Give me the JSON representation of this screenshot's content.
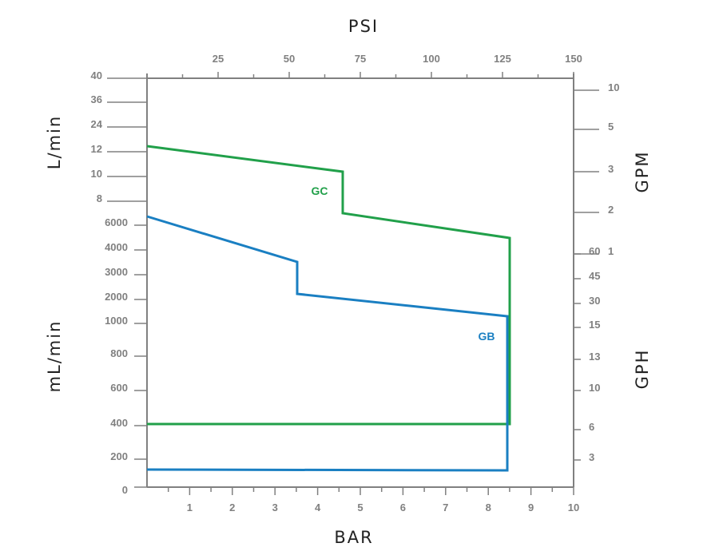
{
  "chart_data": {
    "type": "line",
    "title": "",
    "xlabel_top": "PSI",
    "xlabel_bottom": "BAR",
    "ylabel_left_upper": "L/min",
    "ylabel_left_lower": "mL/min",
    "ylabel_right_upper": "GPM",
    "ylabel_right_lower": "GPH",
    "x_bottom_ticks": [
      "1",
      "2",
      "3",
      "4",
      "5",
      "6",
      "7",
      "8",
      "9",
      "10"
    ],
    "x_top_ticks": [
      "25",
      "50",
      "75",
      "100",
      "125",
      "150"
    ],
    "y_left_upper_ticks": [
      "40",
      "36",
      "24",
      "12",
      "10",
      "8"
    ],
    "y_left_lower_ticks": [
      "6000",
      "4000",
      "3000",
      "2000",
      "1000",
      "800",
      "600",
      "400",
      "200",
      "0"
    ],
    "y_right_upper_ticks": [
      "10",
      "5",
      "3",
      "2",
      "1"
    ],
    "y_right_lower_ticks": [
      "60",
      "45",
      "30",
      "15",
      "13",
      "10",
      "6",
      "3"
    ],
    "xlim_bar": [
      0,
      10
    ],
    "series": [
      {
        "name": "GC",
        "color": "#21a04a",
        "points": [
          {
            "x": 0,
            "y": "~12.5 L/min"
          },
          {
            "x": 4.6,
            "y": "~10.2 L/min"
          },
          {
            "x": 4.6,
            "y": "~7 L/min"
          },
          {
            "x": 8.5,
            "y": "~5500 mL/min"
          },
          {
            "x": 8.5,
            "y": "~410 mL/min"
          },
          {
            "x": 0,
            "y": "~410 mL/min"
          }
        ]
      },
      {
        "name": "GB",
        "color": "#1a7fc2",
        "points": [
          {
            "x": 0,
            "y": "~6500 mL/min"
          },
          {
            "x": 3.5,
            "y": "~3500 mL/min"
          },
          {
            "x": 3.5,
            "y": "~2150 mL/min"
          },
          {
            "x": 8.45,
            "y": "~1200 mL/min"
          },
          {
            "x": 8.45,
            "y": "~135 mL/min"
          },
          {
            "x": 0,
            "y": "~135 mL/min"
          }
        ]
      }
    ]
  }
}
